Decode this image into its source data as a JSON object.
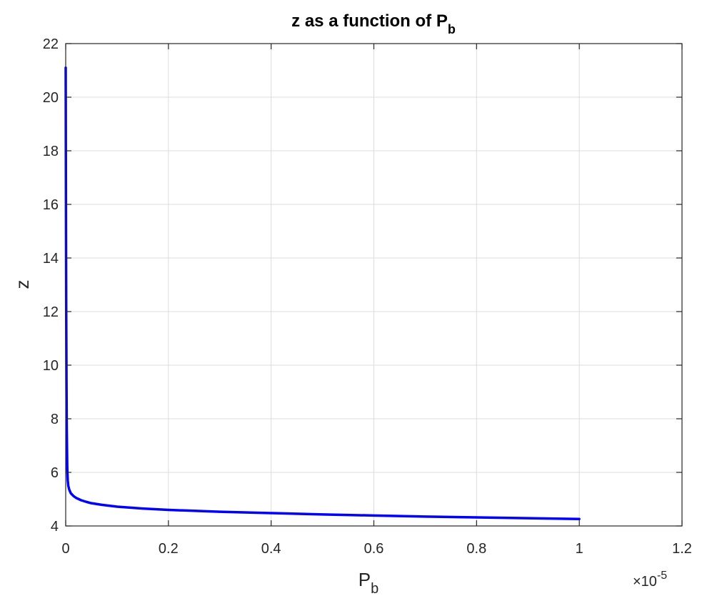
{
  "chart_data": {
    "type": "line",
    "title": {
      "main": "z as a function of P",
      "sub": "b"
    },
    "xlabel": {
      "main": "P",
      "sub": "b"
    },
    "ylabel": "z",
    "x_exponent": {
      "prefix": "×10",
      "power": "-5"
    },
    "xlim": [
      0,
      1.2
    ],
    "ylim": [
      4,
      22
    ],
    "x_ticks": [
      0,
      0.2,
      0.4,
      0.6,
      0.8,
      1,
      1.2
    ],
    "x_tick_labels": [
      "0",
      "0.2",
      "0.4",
      "0.6",
      "0.8",
      "1",
      "1.2"
    ],
    "y_ticks": [
      4,
      6,
      8,
      10,
      12,
      14,
      16,
      18,
      20,
      22
    ],
    "y_tick_labels": [
      "4",
      "6",
      "8",
      "10",
      "12",
      "14",
      "16",
      "18",
      "20",
      "22"
    ],
    "grid": true,
    "series": [
      {
        "color": "#0000ff",
        "x": [
          0.0,
          0.0003,
          0.0006,
          0.001,
          0.0015,
          0.002,
          0.003,
          0.004,
          0.005,
          0.007,
          0.01,
          0.015,
          0.02,
          0.03,
          0.04,
          0.05,
          0.07,
          0.1,
          0.15,
          0.2,
          0.3,
          0.4,
          0.5,
          0.6,
          0.7,
          0.8,
          0.9,
          1.0
        ],
        "y": [
          21.1,
          17.8,
          15.0,
          12.0,
          9.5,
          7.7,
          6.2,
          5.7,
          5.5,
          5.35,
          5.22,
          5.12,
          5.05,
          4.96,
          4.9,
          4.85,
          4.79,
          4.72,
          4.65,
          4.6,
          4.53,
          4.48,
          4.43,
          4.39,
          4.35,
          4.32,
          4.29,
          4.26
        ]
      }
    ]
  }
}
